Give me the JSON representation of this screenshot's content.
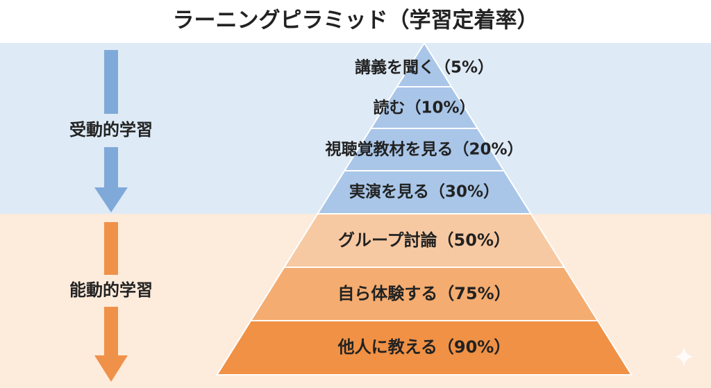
{
  "title": "ラーニングピラミッド（学習定着率）",
  "groups": [
    {
      "label": "受動的学習"
    },
    {
      "label": "能動的学習"
    }
  ],
  "levels": [
    {
      "label": "講義を聞く（5%）"
    },
    {
      "label": "読む（10%）"
    },
    {
      "label": "視聴覚教材を見る（20%）"
    },
    {
      "label": "実演を見る（30%）"
    },
    {
      "label": "グループ討論（50%）"
    },
    {
      "label": "自ら体験する（75%）"
    },
    {
      "label": "他人に教える（90%）"
    }
  ]
}
